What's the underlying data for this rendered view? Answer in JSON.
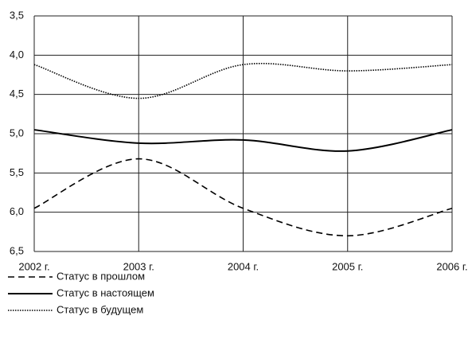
{
  "chart_data": {
    "type": "line",
    "categories": [
      "2002 г.",
      "2003 г.",
      "2004 г.",
      "2005 г.",
      "2006 г."
    ],
    "series": [
      {
        "name": "Статус в прошлом",
        "color": "#000000",
        "style": "dashed",
        "values": [
          5.95,
          5.32,
          5.95,
          6.3,
          5.95
        ]
      },
      {
        "name": "Статус в настоящем",
        "color": "#000000",
        "style": "solid",
        "values": [
          4.95,
          5.12,
          5.08,
          5.22,
          4.95
        ]
      },
      {
        "name": "Статус в будущем",
        "color": "#000000",
        "style": "dotted",
        "values": [
          4.12,
          4.55,
          4.12,
          4.2,
          4.12
        ]
      }
    ],
    "ylim": [
      6.5,
      3.5
    ],
    "yticks": [
      {
        "value": 3.5,
        "label": "3,5"
      },
      {
        "value": 4.0,
        "label": "4,0"
      },
      {
        "value": 4.5,
        "label": "4,5"
      },
      {
        "value": 5.0,
        "label": "5,0"
      },
      {
        "value": 5.5,
        "label": "5,5"
      },
      {
        "value": 6.0,
        "label": "6,0"
      },
      {
        "value": 6.5,
        "label": "6,5"
      }
    ],
    "grid": true
  }
}
